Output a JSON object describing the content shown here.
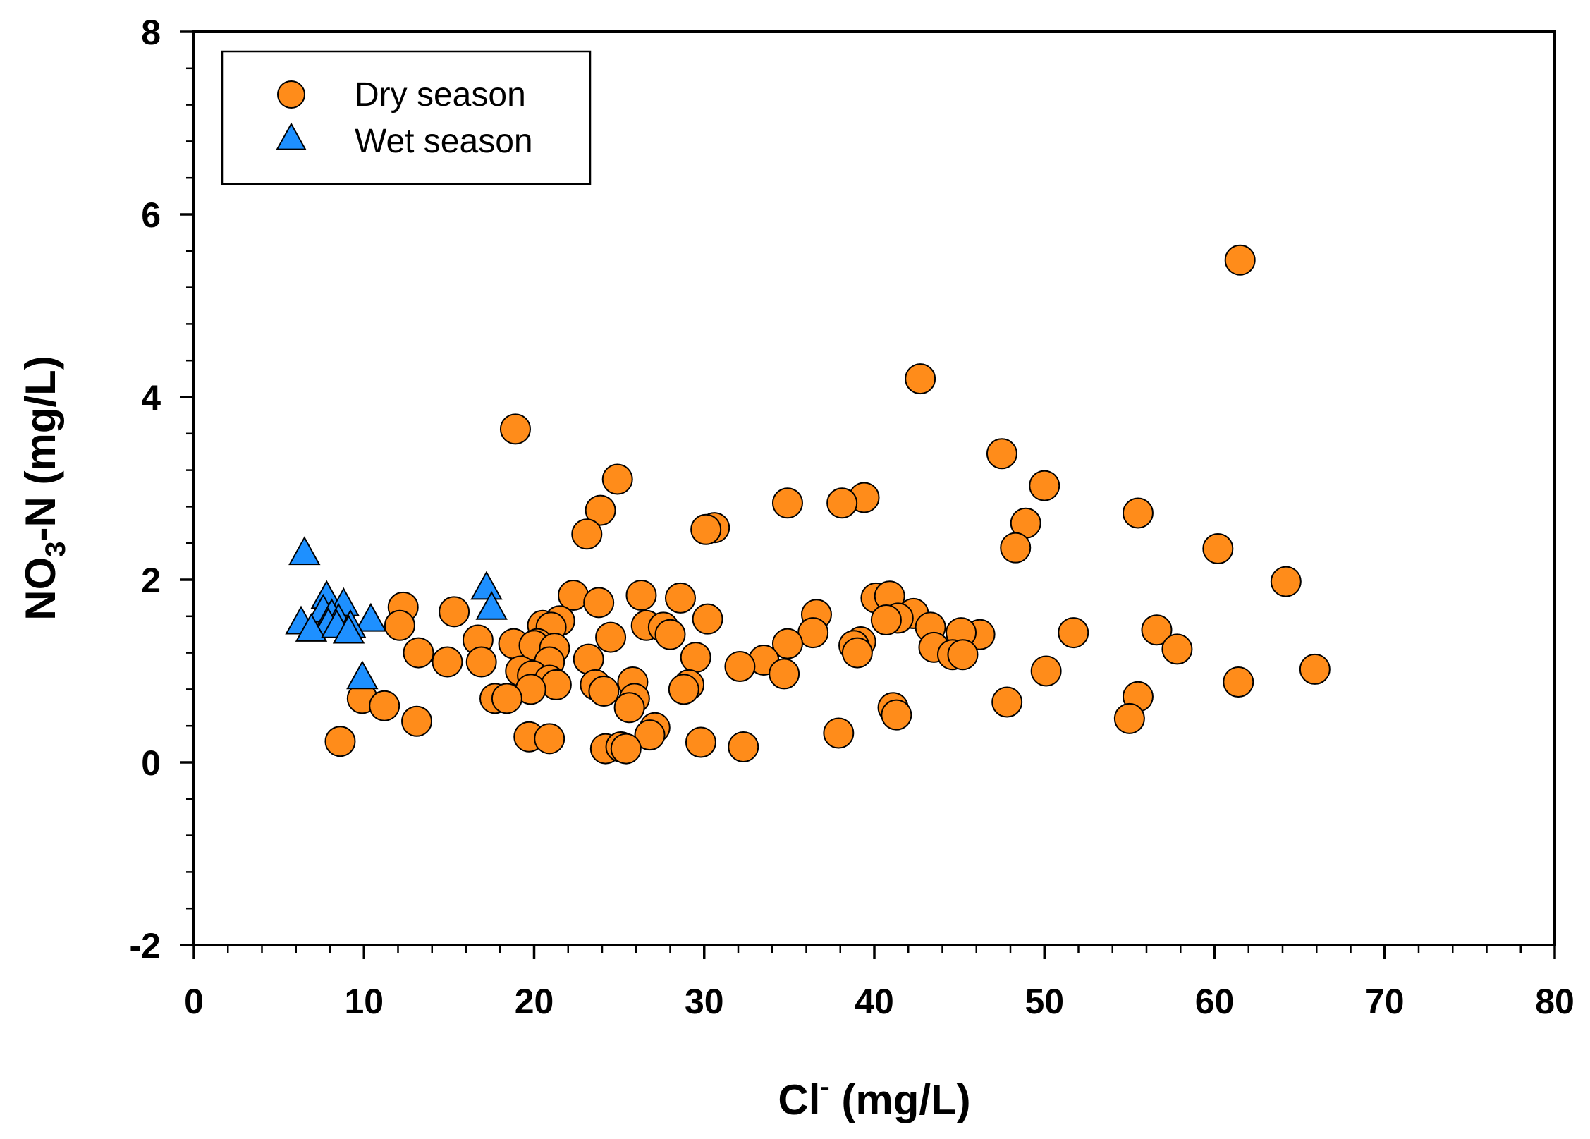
{
  "chart_data": {
    "type": "scatter",
    "title": "",
    "xlabel": {
      "base": "Cl",
      "sup": "-",
      "unit": " (mg/L)"
    },
    "ylabel": {
      "pre": "NO",
      "sub": "3",
      "post": "-N (mg/L)"
    },
    "xlim": [
      0,
      80
    ],
    "ylim": [
      -2,
      8
    ],
    "xticks": [
      0,
      10,
      20,
      30,
      40,
      50,
      60,
      70,
      80
    ],
    "yticks": [
      -2,
      0,
      2,
      4,
      6,
      8
    ],
    "grid": false,
    "legend_position": "top-left",
    "colors": {
      "dry": "#FF8C1A",
      "wet": "#1E90FF",
      "stroke": "#000000"
    },
    "series": [
      {
        "name": "Dry season",
        "marker": "circle",
        "points": [
          [
            61.5,
            5.5
          ],
          [
            42.7,
            4.2
          ],
          [
            18.9,
            3.65
          ],
          [
            47.5,
            3.38
          ],
          [
            24.9,
            3.1
          ],
          [
            50.0,
            3.03
          ],
          [
            39.4,
            2.9
          ],
          [
            34.9,
            2.84
          ],
          [
            38.1,
            2.84
          ],
          [
            23.9,
            2.76
          ],
          [
            55.5,
            2.73
          ],
          [
            48.9,
            2.62
          ],
          [
            30.6,
            2.57
          ],
          [
            30.1,
            2.55
          ],
          [
            23.1,
            2.5
          ],
          [
            48.3,
            2.35
          ],
          [
            60.2,
            2.34
          ],
          [
            64.2,
            1.98
          ],
          [
            22.3,
            1.83
          ],
          [
            26.3,
            1.83
          ],
          [
            40.1,
            1.8
          ],
          [
            28.6,
            1.8
          ],
          [
            40.9,
            1.82
          ],
          [
            23.8,
            1.75
          ],
          [
            12.3,
            1.7
          ],
          [
            15.3,
            1.65
          ],
          [
            42.3,
            1.63
          ],
          [
            36.6,
            1.62
          ],
          [
            21.5,
            1.55
          ],
          [
            30.2,
            1.57
          ],
          [
            41.4,
            1.58
          ],
          [
            40.7,
            1.56
          ],
          [
            20.5,
            1.5
          ],
          [
            26.6,
            1.5
          ],
          [
            27.6,
            1.48
          ],
          [
            12.1,
            1.5
          ],
          [
            21.0,
            1.48
          ],
          [
            43.3,
            1.48
          ],
          [
            56.6,
            1.45
          ],
          [
            51.7,
            1.42
          ],
          [
            36.4,
            1.42
          ],
          [
            46.2,
            1.4
          ],
          [
            45.1,
            1.42
          ],
          [
            28.0,
            1.4
          ],
          [
            24.5,
            1.37
          ],
          [
            16.7,
            1.34
          ],
          [
            39.2,
            1.32
          ],
          [
            18.8,
            1.3
          ],
          [
            20.2,
            1.3
          ],
          [
            34.9,
            1.3
          ],
          [
            38.8,
            1.28
          ],
          [
            20.0,
            1.28
          ],
          [
            43.5,
            1.26
          ],
          [
            57.8,
            1.24
          ],
          [
            21.2,
            1.25
          ],
          [
            13.2,
            1.2
          ],
          [
            39.0,
            1.2
          ],
          [
            44.6,
            1.18
          ],
          [
            45.2,
            1.18
          ],
          [
            29.5,
            1.15
          ],
          [
            23.2,
            1.13
          ],
          [
            33.5,
            1.12
          ],
          [
            20.9,
            1.1
          ],
          [
            14.9,
            1.1
          ],
          [
            16.9,
            1.1
          ],
          [
            32.1,
            1.05
          ],
          [
            65.9,
            1.02
          ],
          [
            19.2,
            1.0
          ],
          [
            50.1,
            1.0
          ],
          [
            34.7,
            0.97
          ],
          [
            19.9,
            0.95
          ],
          [
            20.9,
            0.9
          ],
          [
            25.8,
            0.88
          ],
          [
            61.4,
            0.88
          ],
          [
            23.6,
            0.85
          ],
          [
            29.1,
            0.85
          ],
          [
            21.3,
            0.85
          ],
          [
            28.8,
            0.8
          ],
          [
            19.8,
            0.8
          ],
          [
            24.1,
            0.78
          ],
          [
            55.5,
            0.72
          ],
          [
            17.7,
            0.7
          ],
          [
            18.4,
            0.7
          ],
          [
            9.9,
            0.7
          ],
          [
            25.9,
            0.7
          ],
          [
            47.8,
            0.66
          ],
          [
            11.2,
            0.62
          ],
          [
            41.1,
            0.6
          ],
          [
            25.6,
            0.6
          ],
          [
            41.3,
            0.52
          ],
          [
            55.0,
            0.48
          ],
          [
            13.1,
            0.45
          ],
          [
            27.1,
            0.38
          ],
          [
            26.8,
            0.3
          ],
          [
            37.9,
            0.32
          ],
          [
            19.7,
            0.28
          ],
          [
            20.9,
            0.26
          ],
          [
            8.6,
            0.23
          ],
          [
            29.8,
            0.22
          ],
          [
            32.3,
            0.17
          ],
          [
            24.2,
            0.15
          ],
          [
            25.1,
            0.17
          ],
          [
            25.4,
            0.15
          ]
        ]
      },
      {
        "name": "Wet season",
        "marker": "triangle",
        "points": [
          [
            6.5,
            2.28
          ],
          [
            17.2,
            1.9
          ],
          [
            7.8,
            1.8
          ],
          [
            8.8,
            1.72
          ],
          [
            17.5,
            1.68
          ],
          [
            7.6,
            1.65
          ],
          [
            8.1,
            1.6
          ],
          [
            8.5,
            1.55
          ],
          [
            6.3,
            1.52
          ],
          [
            10.4,
            1.55
          ],
          [
            7.9,
            1.5
          ],
          [
            9.2,
            1.48
          ],
          [
            6.9,
            1.44
          ],
          [
            8.4,
            1.48
          ],
          [
            9.1,
            1.42
          ],
          [
            9.9,
            0.92
          ]
        ]
      }
    ]
  }
}
